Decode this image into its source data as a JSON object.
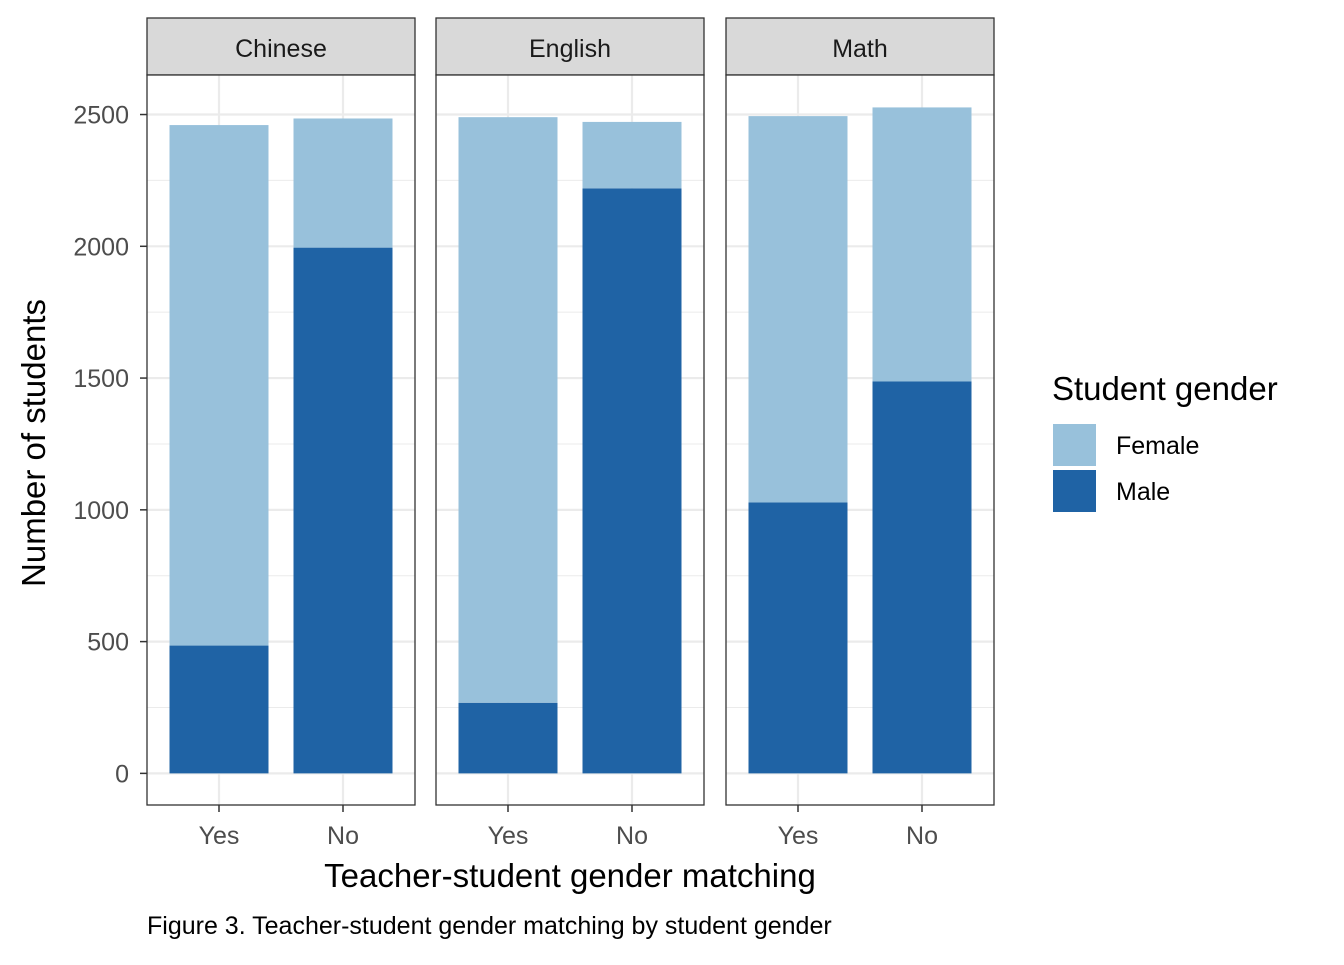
{
  "chart_data": {
    "type": "bar",
    "stacked": true,
    "facets": [
      "Chinese",
      "English",
      "Math"
    ],
    "categories": [
      "Yes",
      "No"
    ],
    "series": [
      {
        "name": "Male",
        "color": "#1F63A5",
        "values": {
          "Chinese": [
            485,
            1995
          ],
          "English": [
            268,
            2220
          ],
          "Math": [
            1028,
            1487
          ]
        }
      },
      {
        "name": "Female",
        "color": "#98C1DB",
        "values": {
          "Chinese": [
            1975,
            490
          ],
          "English": [
            2222,
            252
          ],
          "Math": [
            1466,
            1040
          ]
        }
      }
    ],
    "legend_order": [
      "Female",
      "Male"
    ],
    "xlabel": "Teacher-student gender matching",
    "ylabel": "Number of students",
    "ylim": [
      -120,
      2650
    ],
    "yticks": [
      0,
      500,
      1000,
      1500,
      2000,
      2500
    ],
    "legend_title": "Student gender",
    "legend_position": "right",
    "grid": true
  },
  "caption": "Figure 3. Teacher-student gender matching by student gender"
}
